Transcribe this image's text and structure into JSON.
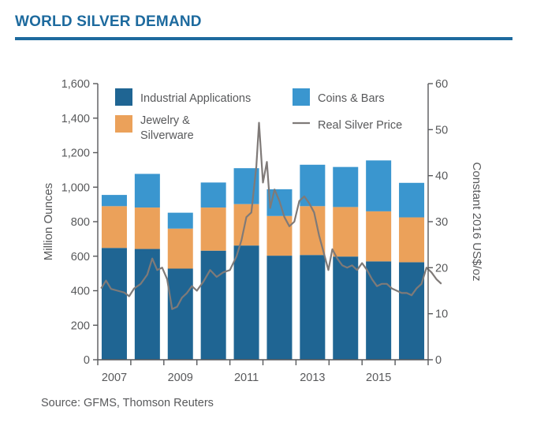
{
  "header": {
    "title": "WORLD SILVER DEMAND"
  },
  "footer": {
    "source": "Source: GFMS, Thomson Reuters"
  },
  "colors": {
    "industrial": "#1f6593",
    "jewelry": "#eba15a",
    "coins": "#3a96cf",
    "price": "#7f7a78",
    "title": "#1d6a9e",
    "axis": "#58595b"
  },
  "chart_data": {
    "type": "bar",
    "stacked": true,
    "title": "WORLD SILVER DEMAND",
    "ylabel": "Million Ounces",
    "y2label": "Constant 2016 US$/oz",
    "ylim": [
      0,
      1600
    ],
    "y2lim": [
      0,
      60
    ],
    "y_ticks": [
      "0",
      "200",
      "400",
      "600",
      "800",
      "1,000",
      "1,200",
      "1,400",
      "1,600"
    ],
    "y2_ticks": [
      "0",
      "10",
      "20",
      "30",
      "40",
      "50",
      "60"
    ],
    "x_tick_labels": [
      "2007",
      "2009",
      "2011",
      "2013",
      "2015"
    ],
    "categories": [
      2007,
      2008,
      2009,
      2010,
      2011,
      2012,
      2013,
      2014,
      2015,
      2016
    ],
    "series": [
      {
        "name": "Industrial Applications",
        "values": [
          648,
          642,
          528,
          632,
          662,
          603,
          607,
          598,
          570,
          565
        ]
      },
      {
        "name": "Jewelry & Silverware",
        "values": [
          242,
          240,
          232,
          250,
          240,
          230,
          283,
          287,
          290,
          260
        ]
      },
      {
        "name": "Coins & Bars",
        "values": [
          65,
          195,
          92,
          145,
          208,
          155,
          240,
          232,
          295,
          200
        ]
      }
    ],
    "line_series": {
      "name": "Real Silver Price",
      "axis": "right",
      "points": [
        [
          2006.6,
          15.5
        ],
        [
          2006.75,
          17.2
        ],
        [
          2006.9,
          15.4
        ],
        [
          2007.1,
          15.0
        ],
        [
          2007.3,
          14.6
        ],
        [
          2007.45,
          13.8
        ],
        [
          2007.6,
          15.5
        ],
        [
          2007.8,
          16.5
        ],
        [
          2008.0,
          18.5
        ],
        [
          2008.15,
          22.0
        ],
        [
          2008.3,
          19.5
        ],
        [
          2008.45,
          20.0
        ],
        [
          2008.6,
          17.5
        ],
        [
          2008.75,
          11.0
        ],
        [
          2008.9,
          11.5
        ],
        [
          2009.05,
          13.5
        ],
        [
          2009.2,
          14.5
        ],
        [
          2009.35,
          16.0
        ],
        [
          2009.5,
          15.0
        ],
        [
          2009.7,
          17.0
        ],
        [
          2009.9,
          19.5
        ],
        [
          2010.1,
          18.0
        ],
        [
          2010.3,
          19.0
        ],
        [
          2010.5,
          19.5
        ],
        [
          2010.7,
          22.5
        ],
        [
          2010.85,
          26.0
        ],
        [
          2011.0,
          31.0
        ],
        [
          2011.15,
          32.0
        ],
        [
          2011.3,
          42.0
        ],
        [
          2011.38,
          51.5
        ],
        [
          2011.5,
          38.5
        ],
        [
          2011.62,
          43.0
        ],
        [
          2011.72,
          33.0
        ],
        [
          2011.85,
          37.0
        ],
        [
          2012.0,
          34.5
        ],
        [
          2012.15,
          31.0
        ],
        [
          2012.3,
          29.0
        ],
        [
          2012.45,
          30.0
        ],
        [
          2012.6,
          34.5
        ],
        [
          2012.75,
          35.5
        ],
        [
          2012.9,
          34.0
        ],
        [
          2013.05,
          32.0
        ],
        [
          2013.2,
          27.0
        ],
        [
          2013.35,
          23.0
        ],
        [
          2013.48,
          19.5
        ],
        [
          2013.6,
          24.0
        ],
        [
          2013.75,
          22.0
        ],
        [
          2013.9,
          20.5
        ],
        [
          2014.05,
          20.0
        ],
        [
          2014.2,
          20.5
        ],
        [
          2014.35,
          19.5
        ],
        [
          2014.5,
          21.0
        ],
        [
          2014.65,
          19.5
        ],
        [
          2014.8,
          17.5
        ],
        [
          2014.95,
          16.0
        ],
        [
          2015.1,
          16.5
        ],
        [
          2015.25,
          16.5
        ],
        [
          2015.4,
          15.5
        ],
        [
          2015.55,
          15.0
        ],
        [
          2015.7,
          14.5
        ],
        [
          2015.85,
          14.5
        ],
        [
          2016.0,
          14.0
        ],
        [
          2016.15,
          15.5
        ],
        [
          2016.3,
          16.5
        ],
        [
          2016.45,
          20.0
        ],
        [
          2016.6,
          19.0
        ],
        [
          2016.75,
          17.5
        ],
        [
          2016.9,
          16.5
        ]
      ]
    },
    "legend": {
      "placement": "top",
      "items": [
        {
          "key": "industrial",
          "label": "Industrial Applications"
        },
        {
          "key": "coins",
          "label": "Coins & Bars"
        },
        {
          "key": "jewelry",
          "label_lines": [
            "Jewelry &",
            "Silverware"
          ]
        },
        {
          "key": "price",
          "label": "Real Silver Price"
        }
      ]
    },
    "grid": false
  }
}
